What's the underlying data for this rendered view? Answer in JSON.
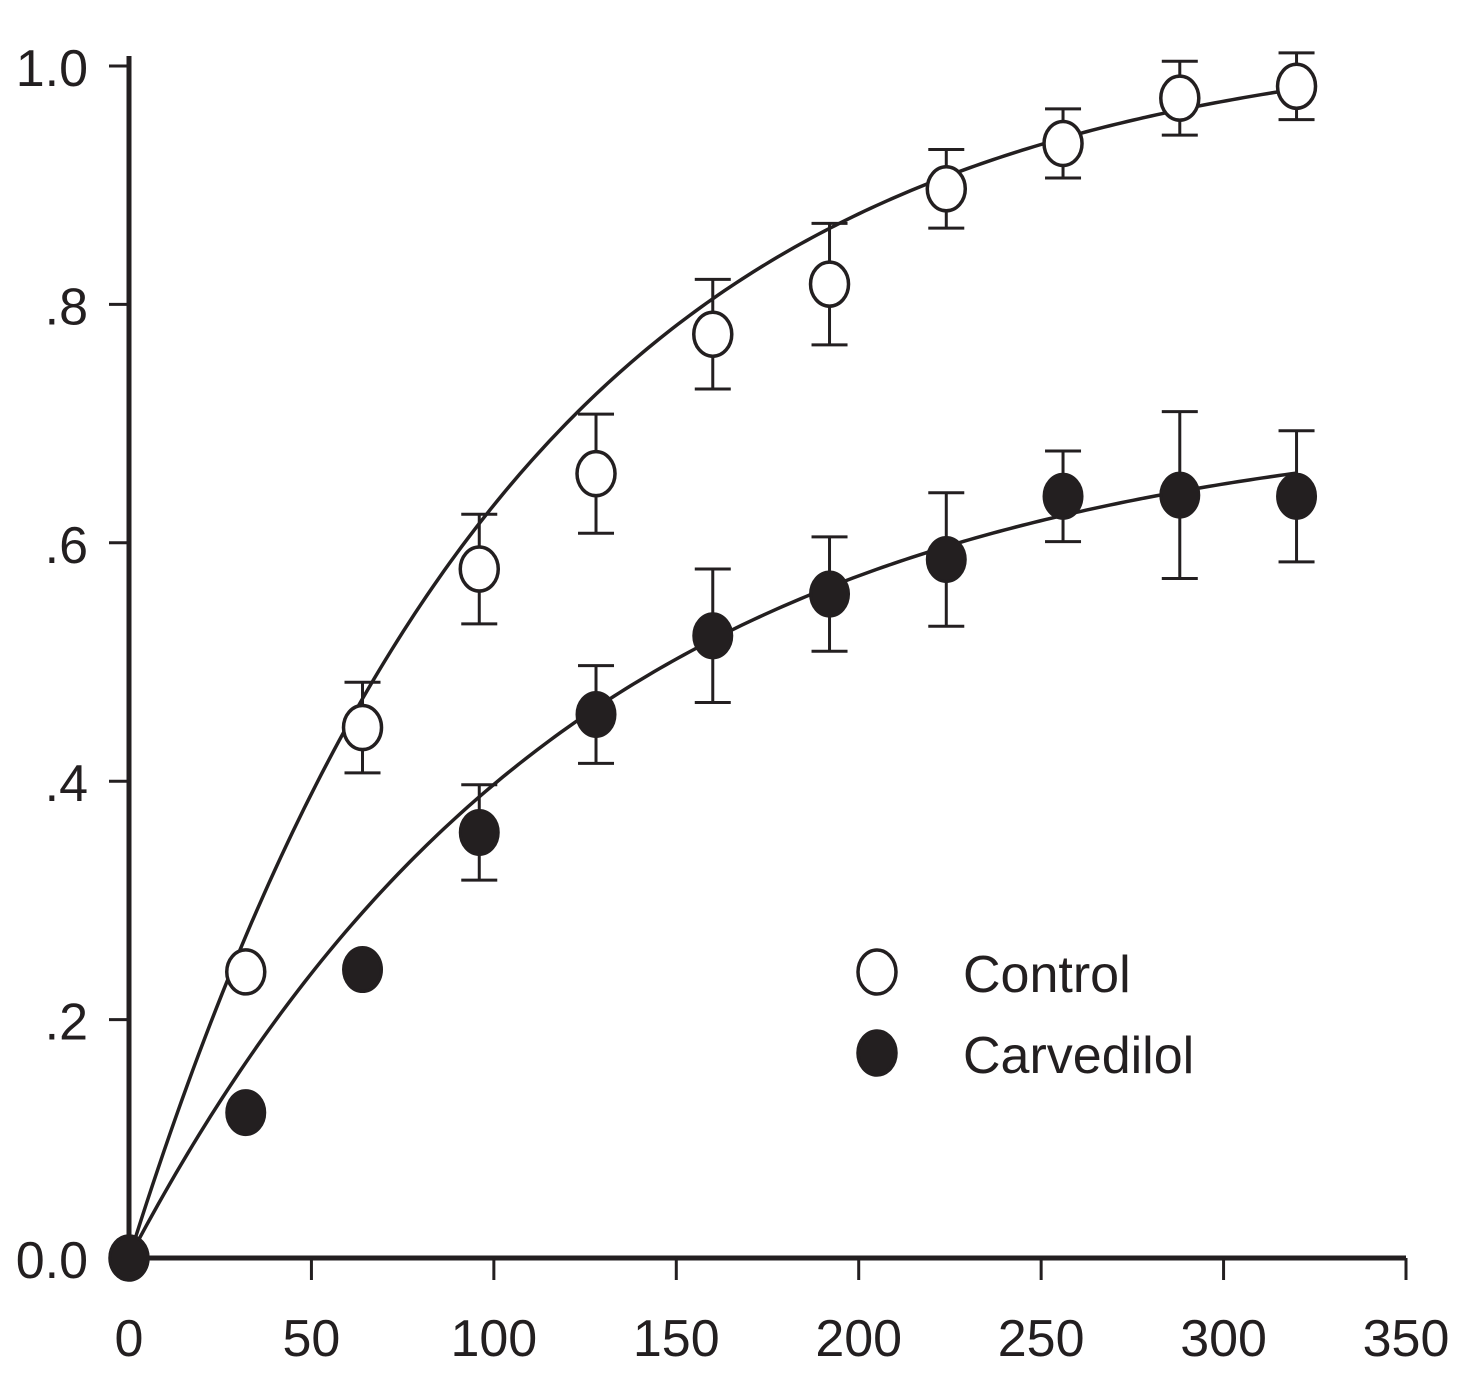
{
  "chart_data": {
    "type": "scatter",
    "title": "",
    "xlabel": "",
    "ylabel": "",
    "xlim": [
      0,
      350
    ],
    "ylim": [
      0,
      1.0
    ],
    "x_ticks": [
      0,
      50,
      100,
      150,
      200,
      250,
      300,
      350
    ],
    "x_tick_labels": [
      "0",
      "50",
      "100",
      "150",
      "200",
      "250",
      "300",
      "350"
    ],
    "y_ticks": [
      0,
      0.2,
      0.4,
      0.6,
      0.8,
      1.0
    ],
    "y_tick_labels": [
      "0.0",
      ".2",
      ".4",
      ".6",
      ".8",
      "1.0"
    ],
    "grid": false,
    "legend_position": "lower-right",
    "series": [
      {
        "name": "Control",
        "marker": "open-circle",
        "color": "#231f20",
        "x": [
          0,
          32,
          64,
          96,
          128,
          160,
          192,
          224,
          256,
          288,
          320
        ],
        "y": [
          0.0,
          0.24,
          0.445,
          0.578,
          0.658,
          0.775,
          0.817,
          0.897,
          0.935,
          0.973,
          0.983
        ],
        "error": [
          null,
          null,
          0.038,
          0.046,
          0.05,
          0.046,
          0.051,
          0.033,
          0.029,
          0.031,
          0.028
        ],
        "fit": {
          "model": "exponential-rise",
          "plateau": 1.03,
          "rate": 0.0095
        }
      },
      {
        "name": "Carvedilol",
        "marker": "filled-circle",
        "color": "#231f20",
        "x": [
          0,
          32,
          64,
          96,
          128,
          160,
          192,
          224,
          256,
          288,
          320
        ],
        "y": [
          0.0,
          0.122,
          0.242,
          0.357,
          0.456,
          0.522,
          0.557,
          0.586,
          0.639,
          0.64,
          0.639
        ],
        "error": [
          null,
          null,
          null,
          0.04,
          0.041,
          0.056,
          0.048,
          0.056,
          0.038,
          0.07,
          0.055
        ],
        "fit": {
          "model": "exponential-rise",
          "plateau": 0.71,
          "rate": 0.0082
        }
      }
    ]
  }
}
